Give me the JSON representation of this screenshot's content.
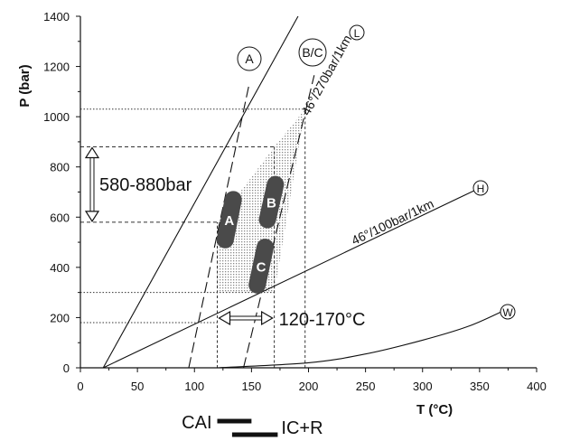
{
  "chart_data": {
    "type": "line",
    "xlabel": "T (°C)",
    "ylabel": "P (bar)",
    "xlim": [
      0,
      400
    ],
    "ylim": [
      0,
      1400
    ],
    "x_ticks": [
      0,
      50,
      100,
      150,
      200,
      250,
      300,
      350,
      400
    ],
    "y_ticks": [
      0,
      200,
      400,
      600,
      800,
      1000,
      1200,
      1400
    ],
    "grid": false,
    "series": [
      {
        "name": "46°/270bar/1km",
        "marker": "L",
        "style": "solid",
        "x": [
          20,
          236
        ],
        "y": [
          0,
          1770
        ]
      },
      {
        "name": "46°/100bar/1km",
        "marker": "H",
        "style": "solid",
        "x": [
          20,
          345
        ],
        "y": [
          0,
          705
        ]
      },
      {
        "name": "W",
        "marker": "W",
        "style": "solid",
        "x": [
          120,
          200,
          250,
          300,
          340,
          370
        ],
        "y": [
          0,
          20,
          55,
          110,
          165,
          225
        ]
      },
      {
        "name": "A",
        "marker": "A",
        "style": "dashed",
        "x": [
          95,
          148
        ],
        "y": [
          0,
          1130
        ]
      },
      {
        "name": "B/C",
        "marker": "B/C",
        "style": "dashed",
        "x": [
          143,
          205
        ],
        "y": [
          0,
          1165
        ]
      }
    ],
    "guides": {
      "pressure_lines": [
        1030,
        880,
        580,
        300,
        180
      ],
      "temperature_lines": [
        120,
        170,
        197
      ]
    },
    "shaded_region": {
      "x": [
        120,
        170,
        197,
        170,
        120
      ],
      "y": [
        300,
        300,
        1030,
        880,
        580
      ]
    },
    "points": [
      {
        "label": "A",
        "x": [
          127,
          134
        ],
        "y": [
          510,
          670
        ]
      },
      {
        "label": "B",
        "x": [
          164,
          171
        ],
        "y": [
          590,
          730
        ]
      },
      {
        "label": "C",
        "x": [
          155,
          162
        ],
        "y": [
          330,
          480
        ]
      }
    ],
    "annotations": {
      "pressure_range": "580-880bar",
      "pressure_range_values": [
        580,
        880
      ],
      "temperature_range": "120-170°C",
      "temperature_range_values": [
        120,
        170
      ]
    },
    "bars_below_axis": [
      {
        "label": "CAI",
        "x": [
          120,
          150
        ]
      },
      {
        "label": "IC+R",
        "x": [
          133,
          173
        ]
      }
    ],
    "colors": {
      "pods": "#4a4a4a",
      "shade": "#cfcfcf",
      "lines": "#111111"
    }
  }
}
